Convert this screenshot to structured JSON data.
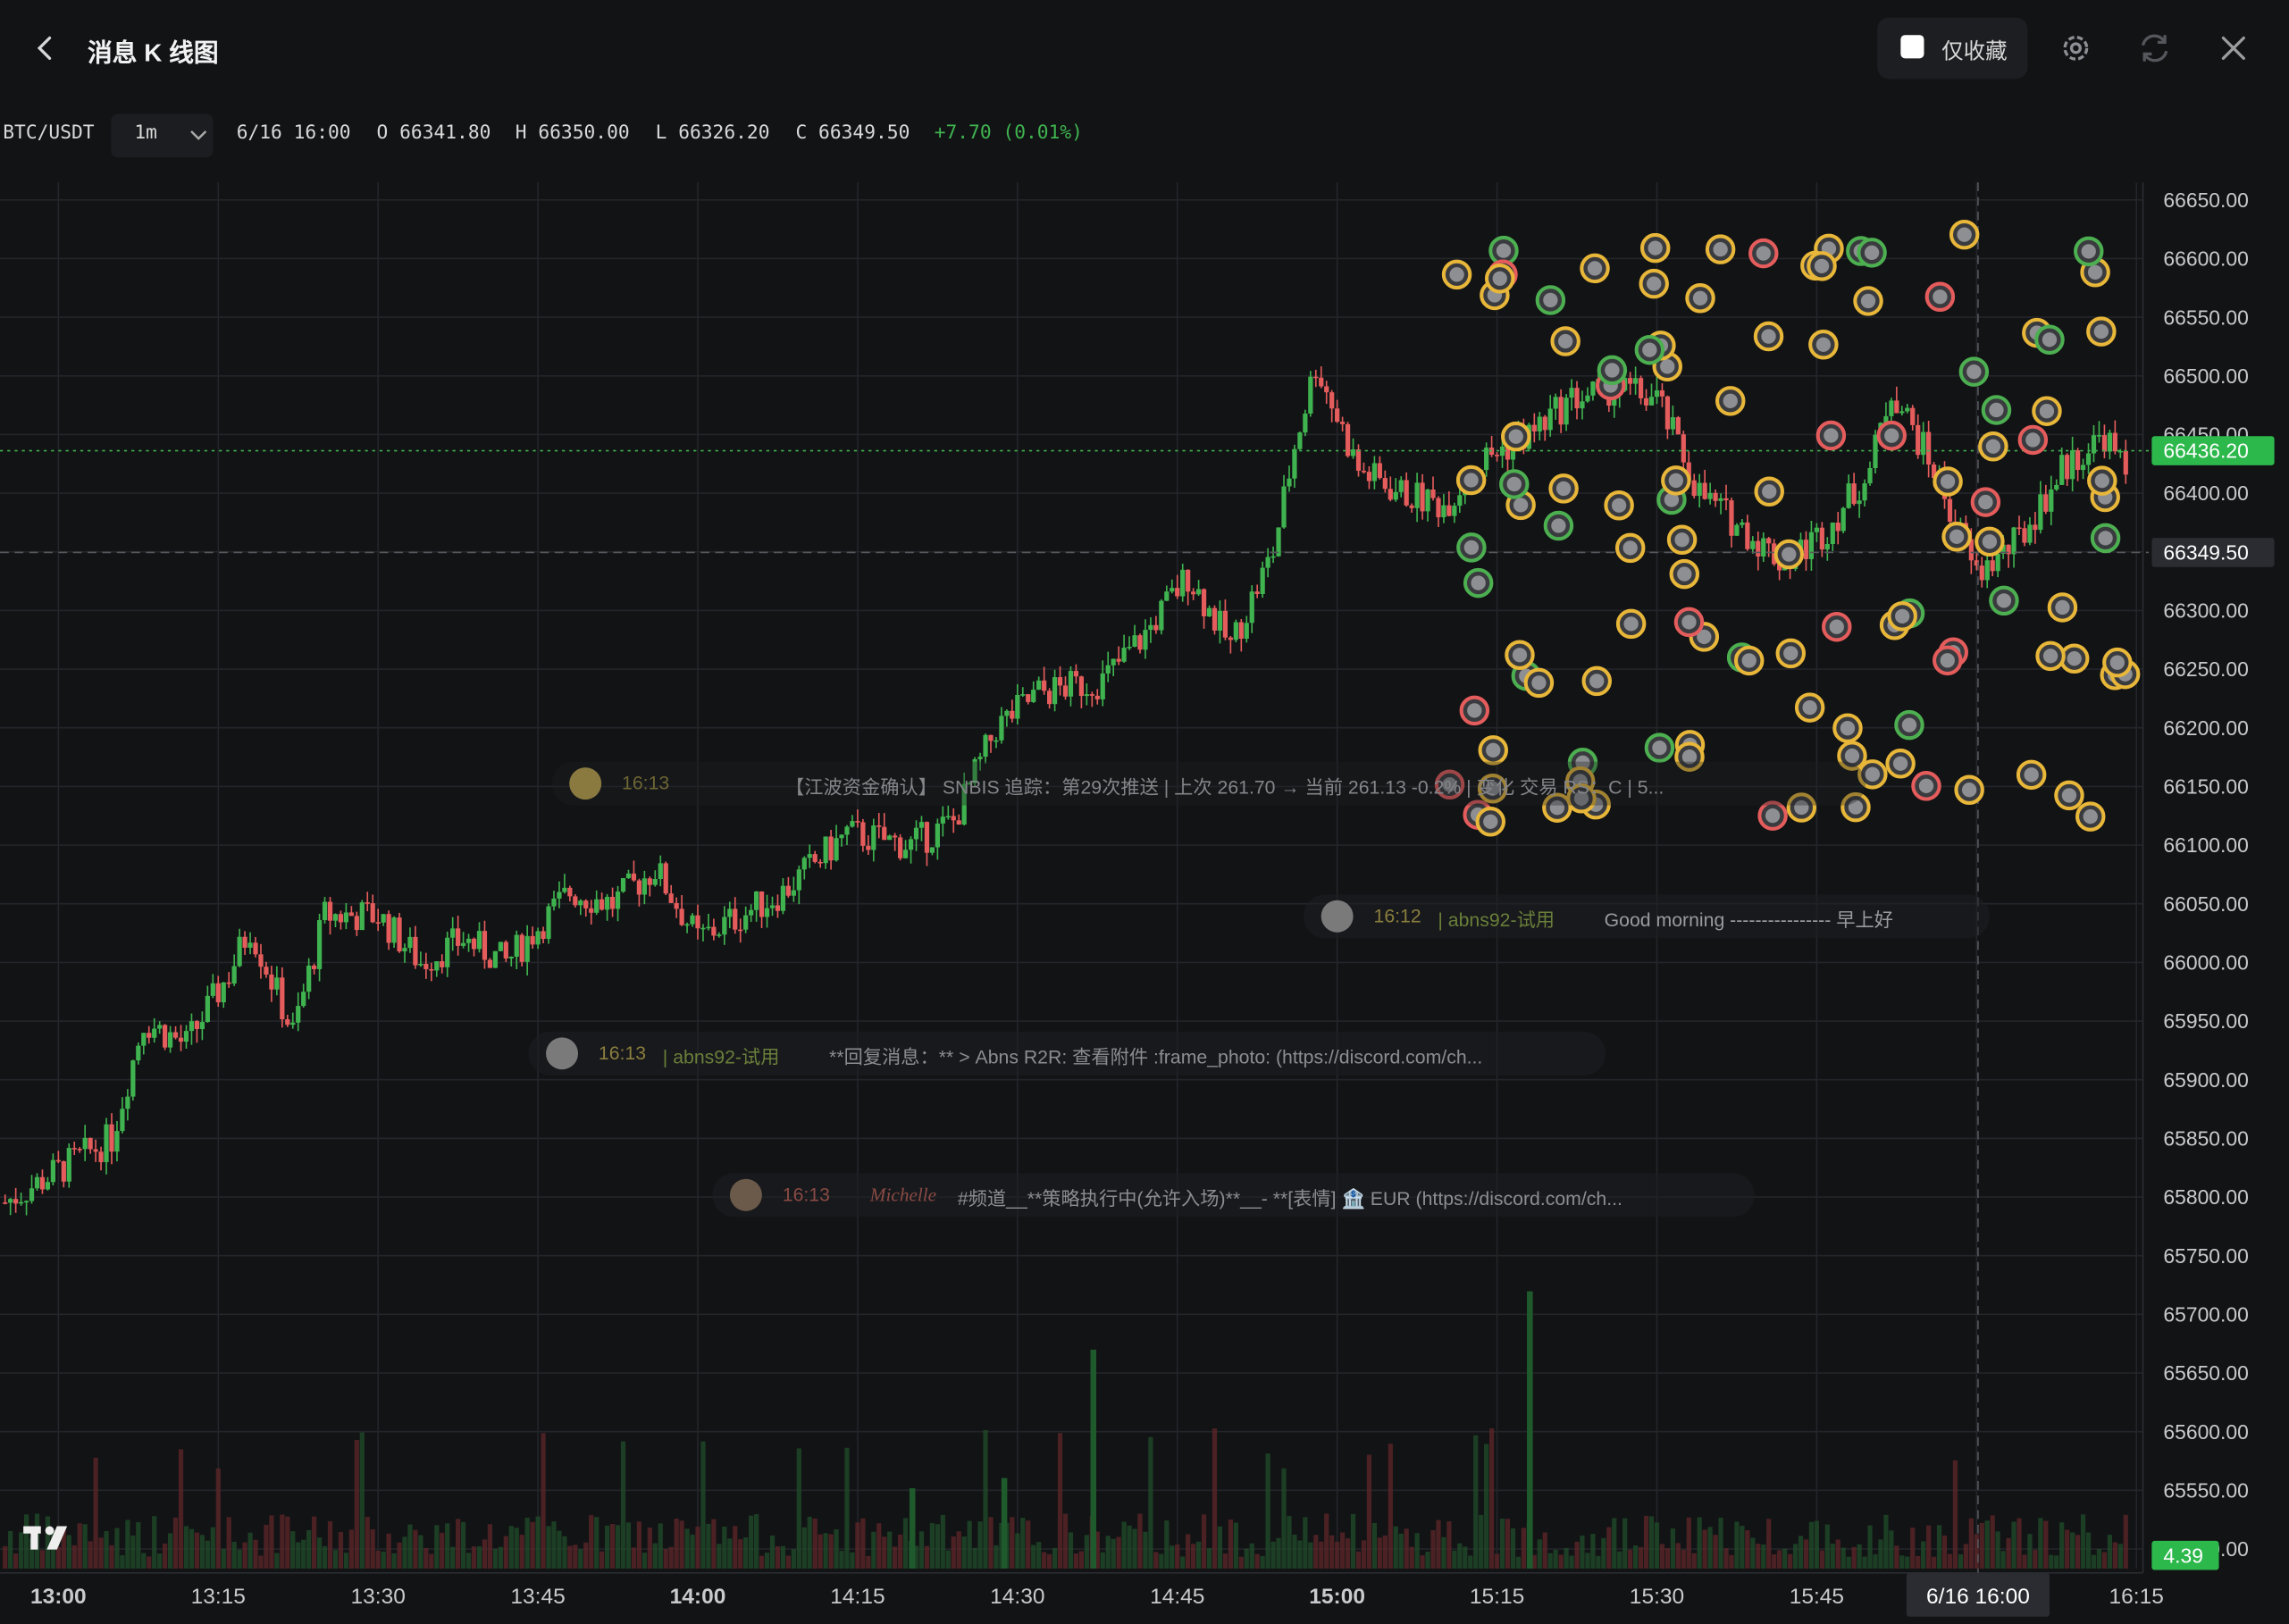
{
  "header": {
    "title": "消息 K 线图",
    "favorite_label": "仅收藏",
    "favorite_checked": false
  },
  "symbol_bar": {
    "symbol": "BTC/USDT",
    "timeframe": "1m",
    "datetime": "6/16 16:00",
    "open": "O 66341.80",
    "high": "H 66350.00",
    "low": "L 66326.20",
    "close": "C 66349.50",
    "change": "+7.70 (0.01%)",
    "change_color": "#3fb34f"
  },
  "colors": {
    "up": "#3fb34f",
    "down": "#e55c5c",
    "background": "#121315",
    "grid": "#23252a",
    "accent_price_label": "#2db84c"
  },
  "price_axis": {
    "labels": [
      "66650.00",
      "66600.00",
      "66550.00",
      "66500.00",
      "66450.00",
      "66400.00",
      "66350.00",
      "66300.00",
      "66250.00",
      "66200.00",
      "66150.00",
      "66100.00",
      "66050.00",
      "66000.00",
      "65950.00",
      "65900.00",
      "65850.00",
      "65800.00",
      "65750.00",
      "65700.00",
      "65650.00",
      "65600.00",
      "65550.00",
      "65500.00"
    ],
    "last_price": "66436.20",
    "crosshair_price": "66349.50",
    "volume_label": "4.39"
  },
  "time_axis": {
    "labels": [
      "13:00",
      "13:15",
      "13:30",
      "13:45",
      "14:00",
      "14:15",
      "14:30",
      "14:45",
      "15:00",
      "15:15",
      "15:30",
      "15:45",
      "16:15"
    ],
    "bold": [
      "13:00",
      "14:00",
      "15:00"
    ],
    "crosshair_time": "6/16 16:00"
  },
  "chart_data": {
    "type": "candlestick",
    "ylim": [
      65500,
      66660
    ],
    "time_range": [
      "12:58",
      "16:17"
    ],
    "series_summary": {
      "start_close": 65820,
      "high": 66540,
      "low": 65780,
      "last": 66436.2
    }
  },
  "messages": [
    {
      "time": "16:13",
      "user": "| abns92-试用",
      "text": "**回复消息：** > Abns R2R: 查看附件 :frame_photo: (https://discord.com/ch..."
    },
    {
      "time": "16:12",
      "user": "| abns92-试用",
      "text": "Good morning ---------------- 早上好"
    },
    {
      "time": "16:13",
      "user": "Michelle",
      "text": "#频道__**策略执行中(允许入场)**__- **[表情] 🏦 EUR (https://discord.com/ch..."
    },
    {
      "time": "16:13",
      "user": "",
      "text": "【江波资金确认】 SNBIS 追踪：第29次推送 | 上次 261.70 → 当前 261.13 -0.2% | 变化 交易 RS：C | 5..."
    }
  ]
}
